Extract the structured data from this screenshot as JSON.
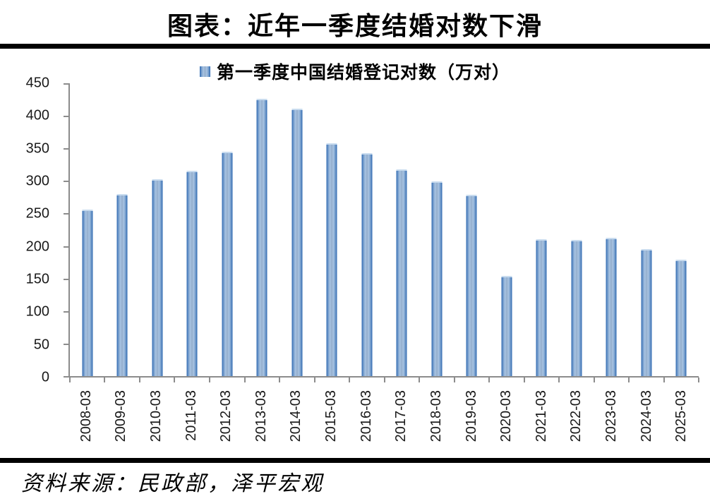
{
  "header": {
    "title": "图表：近年一季度结婚对数下滑"
  },
  "legend": {
    "label": "第一季度中国结婚登记对数（万对）"
  },
  "footer": {
    "source": "资料来源：民政部，泽平宏观"
  },
  "colors": {
    "bar_edge": "#2A66B0",
    "bar_light": "#A9C4E2",
    "bar_mid": "#93AECD",
    "bar_top_cap": "#C9DCEF",
    "axis": "#8C8C8C",
    "rule": "#000000",
    "text": "#000000"
  },
  "chart_data": {
    "type": "bar",
    "title": "图表：近年一季度结婚对数下滑",
    "legend": [
      "第一季度中国结婚登记对数（万对）"
    ],
    "legend_position": "top-center",
    "categories": [
      "2008-03",
      "2009-03",
      "2010-03",
      "2011-03",
      "2012-03",
      "2013-03",
      "2014-03",
      "2015-03",
      "2016-03",
      "2017-03",
      "2018-03",
      "2019-03",
      "2020-03",
      "2021-03",
      "2022-03",
      "2023-03",
      "2024-03",
      "2025-03"
    ],
    "values": [
      258,
      282,
      305,
      318,
      347,
      428,
      413,
      360,
      345,
      320,
      302,
      281,
      156,
      213,
      211,
      215,
      197,
      181
    ],
    "xlabel": "",
    "ylabel": "",
    "ylim": [
      0,
      450
    ],
    "yticks": [
      0,
      50,
      100,
      150,
      200,
      250,
      300,
      350,
      400,
      450
    ],
    "grid": false,
    "source_note": "资料来源：民政部，泽平宏观"
  }
}
